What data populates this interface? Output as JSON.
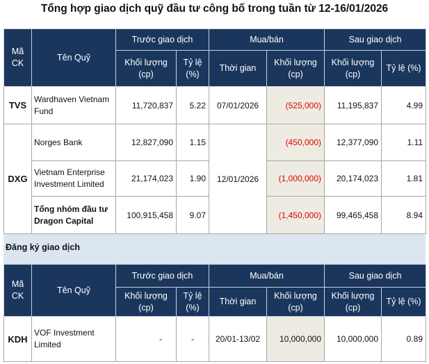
{
  "title": "Tổng hợp giao dịch quỹ đầu tư công bố trong tuần từ 12-16/01/2026",
  "headers": {
    "code": "Mã CK",
    "fund": "Tên Quỹ",
    "before": "Trước giao dịch",
    "trade": "Mua/bán",
    "after": "Sau giao dịch",
    "volume": "Khối lượng (cp)",
    "ratio_short": "Tỷ lệ (%)",
    "time": "Thời gian",
    "ratio": "Tỷ lệ (%)"
  },
  "table1": {
    "rows": [
      {
        "code": "TVS",
        "fund": "Wardhaven Vietnam Fund",
        "before_volume": "11,720,837",
        "before_ratio": "5.22",
        "time": "07/01/2026",
        "trade_volume": "(525,000)",
        "after_volume": "11,195,837",
        "after_ratio": "4.99"
      },
      {
        "code": "DXG",
        "fund": "Norges Bank",
        "before_volume": "12,827,090",
        "before_ratio": "1.15",
        "time": "12/01/2026",
        "trade_volume": "(450,000)",
        "after_volume": "12,377,090",
        "after_ratio": "1.11"
      },
      {
        "fund": "Vietnam Enterprise Investment Limited",
        "before_volume": "21,174,023",
        "before_ratio": "1.90",
        "trade_volume": "(1,000,000)",
        "after_volume": "20,174,023",
        "after_ratio": "1.81"
      },
      {
        "fund": "Tổng nhóm đầu tư Dragon Capital",
        "before_volume": "100,915,458",
        "before_ratio": "9.07",
        "trade_volume": "(1,450,000)",
        "after_volume": "99,465,458",
        "after_ratio": "8.94"
      }
    ]
  },
  "section_label": "Đăng ký giao dịch",
  "table2": {
    "rows": [
      {
        "code": "KDH",
        "fund": "VOF Investment Limited",
        "before_volume": "-",
        "before_ratio": "-",
        "time": "20/01-13/02",
        "trade_volume": "10,000,000",
        "after_volume": "10,000,000",
        "after_ratio": "0.89"
      }
    ]
  },
  "colors": {
    "header_bg": "#1b365d",
    "negative": "#e00000",
    "highlight_bg": "#eeebe2",
    "section_bg": "#dce6f1"
  }
}
